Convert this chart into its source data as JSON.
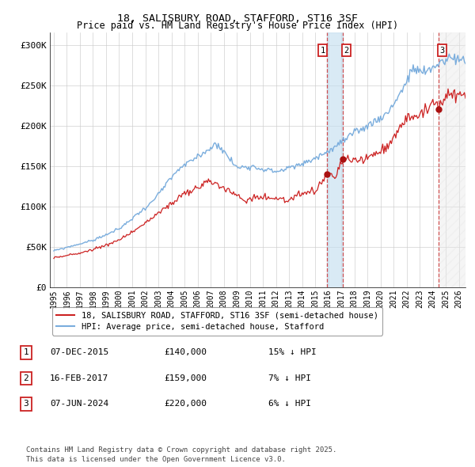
{
  "title": "18, SALISBURY ROAD, STAFFORD, ST16 3SF",
  "subtitle": "Price paid vs. HM Land Registry's House Price Index (HPI)",
  "ylabel_ticks": [
    "£0",
    "£50K",
    "£100K",
    "£150K",
    "£200K",
    "£250K",
    "£300K"
  ],
  "ytick_values": [
    0,
    50000,
    100000,
    150000,
    200000,
    250000,
    300000
  ],
  "ylim": [
    0,
    315000
  ],
  "xlim_start": 1994.7,
  "xlim_end": 2026.5,
  "hpi_color": "#7aaddd",
  "price_color": "#cc2222",
  "transaction_dates": [
    2015.92,
    2017.12,
    2024.44
  ],
  "transaction_prices": [
    140000,
    159000,
    220000
  ],
  "legend_price_label": "18, SALISBURY ROAD, STAFFORD, ST16 3SF (semi-detached house)",
  "legend_hpi_label": "HPI: Average price, semi-detached house, Stafford",
  "table_data": [
    [
      "1",
      "07-DEC-2015",
      "£140,000",
      "15% ↓ HPI"
    ],
    [
      "2",
      "16-FEB-2017",
      "£159,000",
      "7% ↓ HPI"
    ],
    [
      "3",
      "07-JUN-2024",
      "£220,000",
      "6% ↓ HPI"
    ]
  ],
  "footer": "Contains HM Land Registry data © Crown copyright and database right 2025.\nThis data is licensed under the Open Government Licence v3.0.",
  "background_color": "#ffffff",
  "grid_color": "#cccccc",
  "shade1_start": 2015.92,
  "shade1_end": 2017.12,
  "shade2_start": 2024.44,
  "shade2_end": 2026.5
}
